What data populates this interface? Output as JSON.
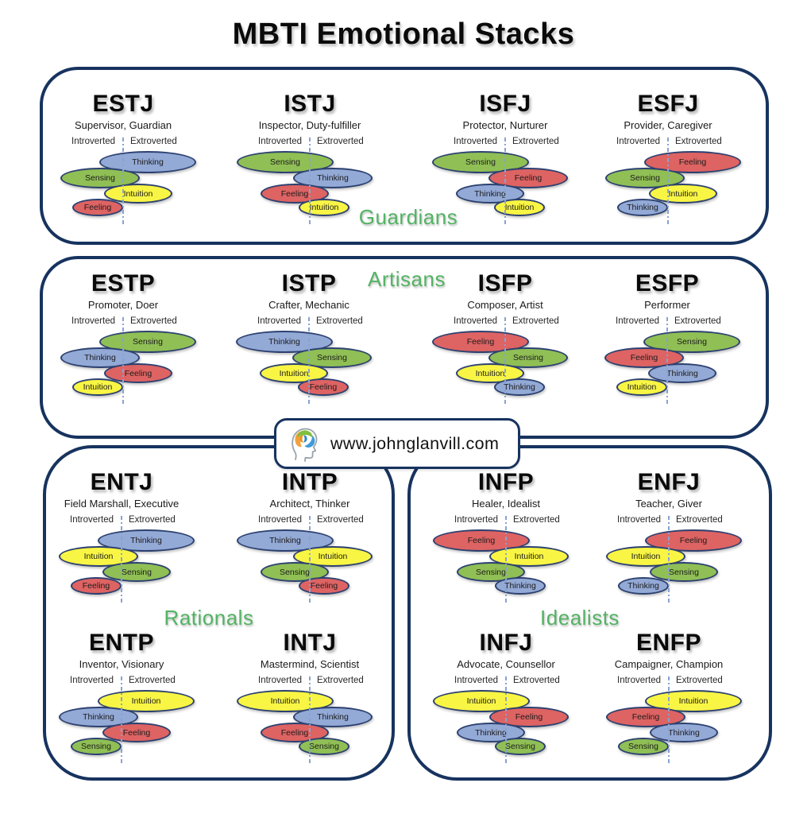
{
  "title": "MBTI Emotional Stacks",
  "axis_labels": {
    "introverted": "Introverted",
    "extroverted": "Extroverted"
  },
  "site_badge": {
    "icon": "head-brain-icon",
    "url_text": "www.johnglanvill.com"
  },
  "colors": {
    "functions": {
      "Thinking": "#93a9d6",
      "Sensing": "#90bf55",
      "Intuition": "#f9f544",
      "Feeling": "#de6363"
    },
    "ellipse_border": "#2c4170",
    "box_border": "#17335f",
    "group_label": "#54b364",
    "dashed_line": "#87a3d2"
  },
  "groups": [
    {
      "label": "Guardians",
      "types": [
        {
          "name": "ESTJ",
          "subtitle": "Supervisor, Guardian",
          "stack": [
            {
              "label": "Thinking",
              "side": "E"
            },
            {
              "label": "Sensing",
              "side": "I"
            },
            {
              "label": "Intuition",
              "side": "E"
            },
            {
              "label": "Feeling",
              "side": "I"
            }
          ]
        },
        {
          "name": "ISTJ",
          "subtitle": "Inspector, Duty-fulfiller",
          "stack": [
            {
              "label": "Sensing",
              "side": "I"
            },
            {
              "label": "Thinking",
              "side": "E"
            },
            {
              "label": "Feeling",
              "side": "I"
            },
            {
              "label": "Intuition",
              "side": "E"
            }
          ]
        },
        {
          "name": "ISFJ",
          "subtitle": "Protector, Nurturer",
          "stack": [
            {
              "label": "Sensing",
              "side": "I"
            },
            {
              "label": "Feeling",
              "side": "E"
            },
            {
              "label": "Thinking",
              "side": "I"
            },
            {
              "label": "Intuition",
              "side": "E"
            }
          ]
        },
        {
          "name": "ESFJ",
          "subtitle": "Provider, Caregiver",
          "stack": [
            {
              "label": "Feeling",
              "side": "E"
            },
            {
              "label": "Sensing",
              "side": "I"
            },
            {
              "label": "Intuition",
              "side": "E"
            },
            {
              "label": "Thinking",
              "side": "I"
            }
          ]
        }
      ]
    },
    {
      "label": "Artisans",
      "types": [
        {
          "name": "ESTP",
          "subtitle": "Promoter, Doer",
          "stack": [
            {
              "label": "Sensing",
              "side": "E"
            },
            {
              "label": "Thinking",
              "side": "I"
            },
            {
              "label": "Feeling",
              "side": "E"
            },
            {
              "label": "Intuition",
              "side": "I"
            }
          ]
        },
        {
          "name": "ISTP",
          "subtitle": "Crafter, Mechanic",
          "stack": [
            {
              "label": "Thinking",
              "side": "I"
            },
            {
              "label": "Sensing",
              "side": "E"
            },
            {
              "label": "Intuition",
              "side": "I"
            },
            {
              "label": "Feeling",
              "side": "E"
            }
          ]
        },
        {
          "name": "ISFP",
          "subtitle": "Composer, Artist",
          "stack": [
            {
              "label": "Feeling",
              "side": "I"
            },
            {
              "label": "Sensing",
              "side": "E"
            },
            {
              "label": "Intuition",
              "side": "I"
            },
            {
              "label": "Thinking",
              "side": "E"
            }
          ]
        },
        {
          "name": "ESFP",
          "subtitle": "Performer",
          "stack": [
            {
              "label": "Sensing",
              "side": "E"
            },
            {
              "label": "Feeling",
              "side": "I"
            },
            {
              "label": "Thinking",
              "side": "E"
            },
            {
              "label": "Intuition",
              "side": "I"
            }
          ]
        }
      ]
    },
    {
      "label": "Rationals",
      "types": [
        {
          "name": "ENTJ",
          "subtitle": "Field Marshall, Executive",
          "stack": [
            {
              "label": "Thinking",
              "side": "E"
            },
            {
              "label": "Intuition",
              "side": "I"
            },
            {
              "label": "Sensing",
              "side": "E"
            },
            {
              "label": "Feeling",
              "side": "I"
            }
          ]
        },
        {
          "name": "INTP",
          "subtitle": "Architect, Thinker",
          "stack": [
            {
              "label": "Thinking",
              "side": "I"
            },
            {
              "label": "Intuition",
              "side": "E"
            },
            {
              "label": "Sensing",
              "side": "I"
            },
            {
              "label": "Feeling",
              "side": "E"
            }
          ]
        },
        {
          "name": "ENTP",
          "subtitle": "Inventor, Visionary",
          "stack": [
            {
              "label": "Intuition",
              "side": "E"
            },
            {
              "label": "Thinking",
              "side": "I"
            },
            {
              "label": "Feeling",
              "side": "E"
            },
            {
              "label": "Sensing",
              "side": "I"
            }
          ]
        },
        {
          "name": "INTJ",
          "subtitle": "Mastermind, Scientist",
          "stack": [
            {
              "label": "Intuition",
              "side": "I"
            },
            {
              "label": "Thinking",
              "side": "E"
            },
            {
              "label": "Feeling",
              "side": "I"
            },
            {
              "label": "Sensing",
              "side": "E"
            }
          ]
        }
      ]
    },
    {
      "label": "Idealists",
      "types": [
        {
          "name": "INFP",
          "subtitle": "Healer, Idealist",
          "stack": [
            {
              "label": "Feeling",
              "side": "I"
            },
            {
              "label": "Intuition",
              "side": "E"
            },
            {
              "label": "Sensing",
              "side": "I"
            },
            {
              "label": "Thinking",
              "side": "E"
            }
          ]
        },
        {
          "name": "ENFJ",
          "subtitle": "Teacher, Giver",
          "stack": [
            {
              "label": "Feeling",
              "side": "E"
            },
            {
              "label": "Intuition",
              "side": "I"
            },
            {
              "label": "Sensing",
              "side": "E"
            },
            {
              "label": "Thinking",
              "side": "I"
            }
          ]
        },
        {
          "name": "INFJ",
          "subtitle": "Advocate, Counsellor",
          "stack": [
            {
              "label": "Intuition",
              "side": "I"
            },
            {
              "label": "Feeling",
              "side": "E"
            },
            {
              "label": "Thinking",
              "side": "I"
            },
            {
              "label": "Sensing",
              "side": "E"
            }
          ]
        },
        {
          "name": "ENFP",
          "subtitle": "Campaigner, Champion",
          "stack": [
            {
              "label": "Intuition",
              "side": "E"
            },
            {
              "label": "Feeling",
              "side": "I"
            },
            {
              "label": "Thinking",
              "side": "E"
            },
            {
              "label": "Sensing",
              "side": "I"
            }
          ]
        }
      ]
    }
  ]
}
